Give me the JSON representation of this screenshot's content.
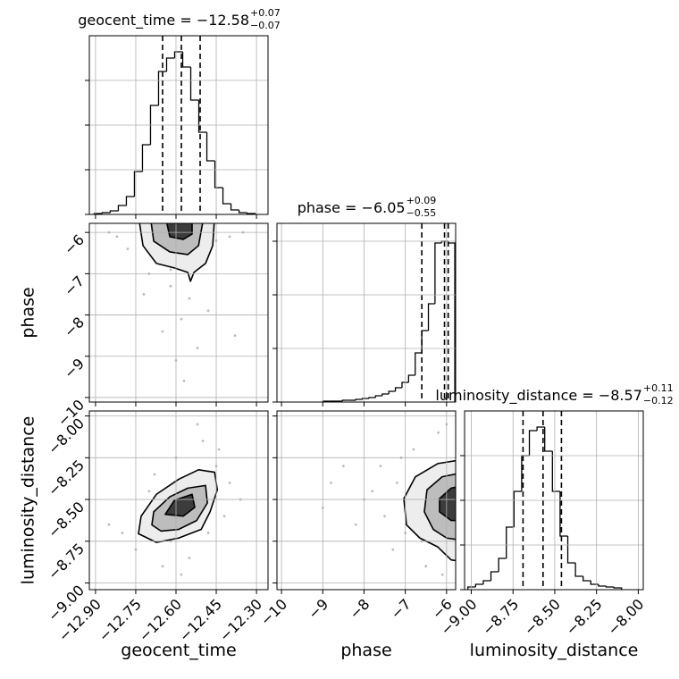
{
  "chart_data": {
    "type": "corner",
    "grid": true,
    "grid_color": "#b0b0b0",
    "line_color": "#000000",
    "point_color": "#777777",
    "contour_fills": [
      "#ededed",
      "#bdbdbd",
      "#3c3c3c"
    ],
    "parameters": [
      {
        "name": "geocent_time",
        "lim": [
          -12.923,
          -12.257
        ],
        "ticks": [
          {
            "value": -12.9,
            "label": "−12.90"
          },
          {
            "value": -12.75,
            "label": "−12.75"
          },
          {
            "value": -12.6,
            "label": "−12.60"
          },
          {
            "value": -12.45,
            "label": "−12.45"
          },
          {
            "value": -12.3,
            "label": "−12.30"
          }
        ]
      },
      {
        "name": "phase",
        "lim": [
          -10.11,
          -5.78
        ],
        "ticks": [
          {
            "value": -10,
            "label": "−10"
          },
          {
            "value": -9,
            "label": "−9"
          },
          {
            "value": -8,
            "label": "−8"
          },
          {
            "value": -7,
            "label": "−7"
          },
          {
            "value": -6,
            "label": "−6"
          }
        ]
      },
      {
        "name": "luminosity_distance",
        "lim": [
          -9.04,
          -7.97
        ],
        "ticks": [
          {
            "value": -9,
            "label": "−9.00"
          },
          {
            "value": -8.75,
            "label": "−8.75"
          },
          {
            "value": -8.5,
            "label": "−8.50"
          },
          {
            "value": -8.25,
            "label": "−8.25"
          },
          {
            "value": -8,
            "label": "−8.00"
          }
        ]
      }
    ],
    "histograms": [
      {
        "title": "geocent_time = −12.58",
        "title_sup": "+0.07",
        "title_sub": "−0.07",
        "quantiles": [
          -12.65,
          -12.58,
          -12.51
        ],
        "bins": [
          -12.905,
          -12.875,
          -12.845,
          -12.815,
          -12.785,
          -12.755,
          -12.725,
          -12.695,
          -12.665,
          -12.635,
          -12.605,
          -12.575,
          -12.545,
          -12.515,
          -12.485,
          -12.455,
          -12.425,
          -12.395,
          -12.365,
          -12.335,
          -12.305
        ],
        "values": [
          1,
          2,
          4,
          10,
          20,
          48,
          78,
          122,
          160,
          175,
          182,
          165,
          128,
          92,
          60,
          30,
          12,
          5,
          2,
          1
        ],
        "ylim": [
          0,
          200
        ],
        "yticks": [
          0,
          50,
          100,
          150
        ]
      },
      {
        "title": "phase = −6.05",
        "title_sup": "+0.09",
        "title_sub": "−0.55",
        "quantiles": [
          -6.6,
          -6.05,
          -5.96
        ],
        "bins": [
          -9.0,
          -8.84,
          -8.68,
          -8.52,
          -8.36,
          -8.2,
          -8.04,
          -7.88,
          -7.72,
          -7.56,
          -7.4,
          -7.24,
          -7.08,
          -6.92,
          -6.76,
          -6.6,
          -6.44,
          -6.28,
          -6.12,
          -5.96,
          -5.8
        ],
        "values": [
          1,
          1,
          1,
          2,
          2,
          3,
          4,
          5,
          7,
          9,
          12,
          16,
          22,
          30,
          55,
          80,
          110,
          178,
          180,
          178
        ],
        "ylim": [
          0,
          200
        ],
        "yticks": [
          0,
          60,
          120,
          180
        ]
      },
      {
        "title": "luminosity_distance = −8.57",
        "title_sup": "+0.11",
        "title_sub": "−0.12",
        "quantiles": [
          -8.69,
          -8.57,
          -8.46
        ],
        "bins": [
          -9.02,
          -8.974,
          -8.928,
          -8.882,
          -8.836,
          -8.79,
          -8.744,
          -8.698,
          -8.652,
          -8.606,
          -8.56,
          -8.514,
          -8.468,
          -8.422,
          -8.376,
          -8.33,
          -8.284,
          -8.238,
          -8.192,
          -8.146,
          -8.1
        ],
        "values": [
          3,
          6,
          10,
          20,
          35,
          70,
          110,
          150,
          178,
          182,
          155,
          110,
          60,
          30,
          15,
          10,
          6,
          4,
          3,
          2
        ],
        "ylim": [
          0,
          200
        ],
        "yticks": [
          0,
          50,
          100,
          150
        ]
      }
    ],
    "panels_2d": [
      {
        "points_x": [
          -12.82,
          -12.78,
          -12.45,
          -12.4,
          -12.7,
          -12.62,
          -12.55,
          -12.58,
          -12.65,
          -12.52,
          -12.6,
          -12.48,
          -12.72,
          -12.38,
          -12.68,
          -12.5,
          -12.85,
          -12.35,
          -12.57,
          -12.62
        ],
        "points_y": [
          -6.1,
          -6.4,
          -6.2,
          -6.1,
          -7.0,
          -7.3,
          -7.6,
          -8.1,
          -8.4,
          -8.8,
          -9.1,
          -7.9,
          -7.5,
          -8.5,
          -6.6,
          -6.5,
          -6.0,
          -6.0,
          -9.6,
          -6.9
        ],
        "contours": [
          {
            "x": [
              -12.74,
              -12.723,
              -12.673,
              -12.606,
              -12.556,
              -12.546,
              -12.533,
              -12.49,
              -12.463,
              -12.456
            ],
            "y": [
              -5.6,
              -6.32,
              -6.752,
              -6.86,
              -6.968,
              -7.184,
              -6.968,
              -6.752,
              -6.32,
              -5.6
            ]
          },
          {
            "x": [
              -12.696,
              -12.683,
              -12.623,
              -12.556,
              -12.516,
              -12.496
            ],
            "y": [
              -5.6,
              -6.212,
              -6.471,
              -6.536,
              -6.32,
              -5.6
            ]
          },
          {
            "x": [
              -12.64,
              -12.623,
              -12.573,
              -12.54,
              -12.54
            ],
            "y": [
              -5.6,
              -6.104,
              -6.169,
              -6.039,
              -5.6
            ]
          }
        ]
      },
      {
        "points_x": [
          -12.8,
          -12.75,
          -12.7,
          -12.65,
          -12.55,
          -12.45,
          -12.4,
          -12.5,
          -12.6,
          -12.42,
          -12.85,
          -12.62,
          -12.48,
          -12.68,
          -12.52,
          -12.36,
          -12.58,
          -12.72,
          -12.44,
          -12.66
        ],
        "points_y": [
          -8.7,
          -8.8,
          -8.45,
          -8.9,
          -8.85,
          -8.3,
          -8.4,
          -8.15,
          -8.25,
          -8.6,
          -8.65,
          -8.75,
          -8.7,
          -8.35,
          -8.05,
          -8.5,
          -8.95,
          -8.6,
          -8.2,
          -8.55
        ],
        "contours": [
          {
            "x": [
              -12.74,
              -12.73,
              -12.673,
              -12.59,
              -12.516,
              -12.456,
              -12.446,
              -12.473,
              -12.506,
              -12.59,
              -12.673
            ],
            "y": [
              -8.705,
              -8.6,
              -8.469,
              -8.379,
              -8.322,
              -8.337,
              -8.442,
              -8.574,
              -8.679,
              -8.731,
              -8.757
            ]
          },
          {
            "x": [
              -12.69,
              -12.683,
              -12.623,
              -12.556,
              -12.49,
              -12.483,
              -12.523,
              -12.59,
              -12.656
            ],
            "y": [
              -8.652,
              -8.574,
              -8.484,
              -8.432,
              -8.416,
              -8.521,
              -8.626,
              -8.679,
              -8.689
            ]
          },
          {
            "x": [
              -12.64,
              -12.606,
              -12.54,
              -12.53,
              -12.573
            ],
            "y": [
              -8.589,
              -8.505,
              -8.469,
              -8.547,
              -8.6
            ]
          }
        ]
      },
      {
        "points_x": [
          -8.5,
          -8.0,
          -7.5,
          -7.2,
          -7.0,
          -6.8,
          -6.5,
          -6.2,
          -7.8,
          -9.0,
          -7.3,
          -6.9,
          -6.4,
          -8.2,
          -6.1,
          -7.6,
          -6.0,
          -8.8,
          -7.1,
          -6.6
        ],
        "points_y": [
          -8.3,
          -8.5,
          -8.6,
          -8.4,
          -8.7,
          -8.2,
          -8.9,
          -8.1,
          -8.45,
          -8.55,
          -8.8,
          -8.55,
          -8.35,
          -8.65,
          -8.95,
          -8.3,
          -8.05,
          -8.4,
          -8.25,
          -8.75
        ],
        "contours": [
          {
            "x": [
              -5.565,
              -6.214,
              -6.755,
              -7.036,
              -6.972,
              -6.647,
              -6.214,
              -5.889,
              -5.565
            ],
            "y": [
              -8.259,
              -8.285,
              -8.364,
              -8.495,
              -8.652,
              -8.731,
              -8.784,
              -8.862,
              -8.873
            ]
          },
          {
            "x": [
              -5.565,
              -6.106,
              -6.474,
              -6.539,
              -6.322,
              -5.997,
              -5.565
            ],
            "y": [
              -8.337,
              -8.364,
              -8.442,
              -8.574,
              -8.679,
              -8.731,
              -8.747
            ]
          },
          {
            "x": [
              -5.565,
              -5.889,
              -6.171,
              -6.171,
              -5.889,
              -5.565
            ],
            "y": [
              -8.416,
              -8.432,
              -8.495,
              -8.574,
              -8.626,
              -8.626
            ]
          }
        ]
      }
    ]
  }
}
